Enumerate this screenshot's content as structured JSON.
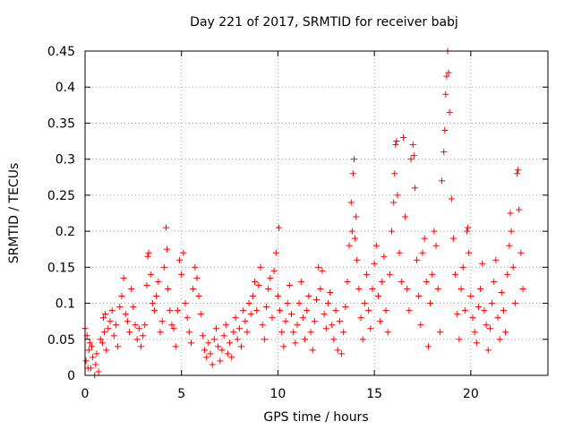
{
  "chart_data": {
    "type": "scatter",
    "title": "Day 221 of 2017, SRMTID for receiver babj",
    "xlabel": "GPS time / hours",
    "ylabel": "SRMTID / TECUs",
    "xlim": [
      0,
      24
    ],
    "ylim": [
      0,
      0.45
    ],
    "xticks": [
      0,
      5,
      10,
      15,
      20
    ],
    "xtick_labels": [
      "0",
      "5",
      "10",
      "15",
      "20"
    ],
    "yticks": [
      0,
      0.05,
      0.1,
      0.15,
      0.2,
      0.25,
      0.3,
      0.35,
      0.4,
      0.45
    ],
    "ytick_labels": [
      "0",
      "0.05",
      "0.1",
      "0.15",
      "0.2",
      "0.25",
      "0.3",
      "0.35",
      "0.4",
      "0.45"
    ],
    "grid": true,
    "marker": "plus",
    "color": "#ff0000",
    "series": [
      {
        "name": "SRMTID",
        "points": [
          [
            0.0,
            0.065
          ],
          [
            0.05,
            0.02
          ],
          [
            0.1,
            0.055
          ],
          [
            0.15,
            0.01
          ],
          [
            0.2,
            0.035
          ],
          [
            0.25,
            0.045
          ],
          [
            0.3,
            0.01
          ],
          [
            0.35,
            0.04
          ],
          [
            0.4,
            0.025
          ],
          [
            0.5,
            0.0
          ],
          [
            0.55,
            0.015
          ],
          [
            0.6,
            0.03
          ],
          [
            0.7,
            0.005
          ],
          [
            0.8,
            0.05
          ],
          [
            0.9,
            0.045
          ],
          [
            0.95,
            0.08
          ],
          [
            1.0,
            0.06
          ],
          [
            1.05,
            0.085
          ],
          [
            1.1,
            0.035
          ],
          [
            1.2,
            0.065
          ],
          [
            1.3,
            0.075
          ],
          [
            1.4,
            0.09
          ],
          [
            1.5,
            0.055
          ],
          [
            1.6,
            0.07
          ],
          [
            1.7,
            0.04
          ],
          [
            1.8,
            0.095
          ],
          [
            1.9,
            0.11
          ],
          [
            2.0,
            0.135
          ],
          [
            2.1,
            0.085
          ],
          [
            2.2,
            0.075
          ],
          [
            2.3,
            0.06
          ],
          [
            2.4,
            0.12
          ],
          [
            2.5,
            0.095
          ],
          [
            2.6,
            0.07
          ],
          [
            2.7,
            0.05
          ],
          [
            2.8,
            0.065
          ],
          [
            2.9,
            0.04
          ],
          [
            3.0,
            0.055
          ],
          [
            3.1,
            0.07
          ],
          [
            3.2,
            0.125
          ],
          [
            3.25,
            0.165
          ],
          [
            3.3,
            0.17
          ],
          [
            3.4,
            0.14
          ],
          [
            3.5,
            0.1
          ],
          [
            3.6,
            0.09
          ],
          [
            3.7,
            0.11
          ],
          [
            3.8,
            0.13
          ],
          [
            3.9,
            0.06
          ],
          [
            4.0,
            0.075
          ],
          [
            4.1,
            0.15
          ],
          [
            4.2,
            0.205
          ],
          [
            4.25,
            0.175
          ],
          [
            4.3,
            0.12
          ],
          [
            4.4,
            0.09
          ],
          [
            4.5,
            0.07
          ],
          [
            4.6,
            0.065
          ],
          [
            4.7,
            0.04
          ],
          [
            4.8,
            0.09
          ],
          [
            4.9,
            0.16
          ],
          [
            5.0,
            0.14
          ],
          [
            5.1,
            0.17
          ],
          [
            5.2,
            0.1
          ],
          [
            5.3,
            0.08
          ],
          [
            5.4,
            0.06
          ],
          [
            5.5,
            0.045
          ],
          [
            5.6,
            0.12
          ],
          [
            5.7,
            0.15
          ],
          [
            5.8,
            0.135
          ],
          [
            5.9,
            0.11
          ],
          [
            6.0,
            0.085
          ],
          [
            6.1,
            0.055
          ],
          [
            6.2,
            0.035
          ],
          [
            6.3,
            0.025
          ],
          [
            6.4,
            0.045
          ],
          [
            6.5,
            0.03
          ],
          [
            6.6,
            0.015
          ],
          [
            6.7,
            0.05
          ],
          [
            6.8,
            0.065
          ],
          [
            6.9,
            0.04
          ],
          [
            7.0,
            0.02
          ],
          [
            7.1,
            0.035
          ],
          [
            7.2,
            0.055
          ],
          [
            7.3,
            0.07
          ],
          [
            7.4,
            0.03
          ],
          [
            7.5,
            0.045
          ],
          [
            7.6,
            0.025
          ],
          [
            7.7,
            0.06
          ],
          [
            7.8,
            0.08
          ],
          [
            7.9,
            0.05
          ],
          [
            8.0,
            0.065
          ],
          [
            8.1,
            0.04
          ],
          [
            8.2,
            0.09
          ],
          [
            8.3,
            0.075
          ],
          [
            8.4,
            0.06
          ],
          [
            8.5,
            0.1
          ],
          [
            8.6,
            0.085
          ],
          [
            8.7,
            0.11
          ],
          [
            8.8,
            0.13
          ],
          [
            8.9,
            0.09
          ],
          [
            9.0,
            0.125
          ],
          [
            9.1,
            0.15
          ],
          [
            9.2,
            0.07
          ],
          [
            9.3,
            0.05
          ],
          [
            9.4,
            0.095
          ],
          [
            9.5,
            0.12
          ],
          [
            9.6,
            0.135
          ],
          [
            9.7,
            0.08
          ],
          [
            9.8,
            0.145
          ],
          [
            9.9,
            0.17
          ],
          [
            10.0,
            0.11
          ],
          [
            10.05,
            0.205
          ],
          [
            10.1,
            0.09
          ],
          [
            10.2,
            0.06
          ],
          [
            10.3,
            0.04
          ],
          [
            10.4,
            0.075
          ],
          [
            10.5,
            0.1
          ],
          [
            10.6,
            0.125
          ],
          [
            10.7,
            0.085
          ],
          [
            10.8,
            0.06
          ],
          [
            10.9,
            0.045
          ],
          [
            11.0,
            0.07
          ],
          [
            11.1,
            0.1
          ],
          [
            11.2,
            0.13
          ],
          [
            11.3,
            0.08
          ],
          [
            11.4,
            0.05
          ],
          [
            11.5,
            0.09
          ],
          [
            11.6,
            0.11
          ],
          [
            11.7,
            0.06
          ],
          [
            11.8,
            0.035
          ],
          [
            11.9,
            0.075
          ],
          [
            12.0,
            0.105
          ],
          [
            12.1,
            0.15
          ],
          [
            12.2,
            0.12
          ],
          [
            12.3,
            0.145
          ],
          [
            12.4,
            0.085
          ],
          [
            12.5,
            0.065
          ],
          [
            12.6,
            0.1
          ],
          [
            12.7,
            0.115
          ],
          [
            12.8,
            0.07
          ],
          [
            12.9,
            0.05
          ],
          [
            13.0,
            0.09
          ],
          [
            13.1,
            0.035
          ],
          [
            13.2,
            0.075
          ],
          [
            13.3,
            0.03
          ],
          [
            13.4,
            0.06
          ],
          [
            13.5,
            0.095
          ],
          [
            13.6,
            0.13
          ],
          [
            13.7,
            0.18
          ],
          [
            13.8,
            0.24
          ],
          [
            13.85,
            0.2
          ],
          [
            13.9,
            0.28
          ],
          [
            13.95,
            0.3
          ],
          [
            14.0,
            0.19
          ],
          [
            14.05,
            0.22
          ],
          [
            14.1,
            0.16
          ],
          [
            14.2,
            0.12
          ],
          [
            14.3,
            0.08
          ],
          [
            14.4,
            0.05
          ],
          [
            14.5,
            0.1
          ],
          [
            14.6,
            0.14
          ],
          [
            14.7,
            0.09
          ],
          [
            14.8,
            0.065
          ],
          [
            14.9,
            0.12
          ],
          [
            15.0,
            0.155
          ],
          [
            15.1,
            0.18
          ],
          [
            15.2,
            0.11
          ],
          [
            15.3,
            0.075
          ],
          [
            15.4,
            0.13
          ],
          [
            15.5,
            0.165
          ],
          [
            15.6,
            0.09
          ],
          [
            15.7,
            0.06
          ],
          [
            15.8,
            0.14
          ],
          [
            15.9,
            0.2
          ],
          [
            16.0,
            0.24
          ],
          [
            16.05,
            0.28
          ],
          [
            16.1,
            0.32
          ],
          [
            16.15,
            0.325
          ],
          [
            16.2,
            0.25
          ],
          [
            16.3,
            0.17
          ],
          [
            16.4,
            0.13
          ],
          [
            16.5,
            0.33
          ],
          [
            16.6,
            0.22
          ],
          [
            16.7,
            0.12
          ],
          [
            16.8,
            0.09
          ],
          [
            16.9,
            0.3
          ],
          [
            17.0,
            0.32
          ],
          [
            17.05,
            0.305
          ],
          [
            17.1,
            0.26
          ],
          [
            17.2,
            0.16
          ],
          [
            17.3,
            0.11
          ],
          [
            17.4,
            0.07
          ],
          [
            17.5,
            0.17
          ],
          [
            17.6,
            0.19
          ],
          [
            17.7,
            0.13
          ],
          [
            17.8,
            0.04
          ],
          [
            17.9,
            0.1
          ],
          [
            18.0,
            0.14
          ],
          [
            18.1,
            0.2
          ],
          [
            18.2,
            0.18
          ],
          [
            18.3,
            0.12
          ],
          [
            18.4,
            0.06
          ],
          [
            18.5,
            0.27
          ],
          [
            18.6,
            0.31
          ],
          [
            18.65,
            0.34
          ],
          [
            18.7,
            0.39
          ],
          [
            18.75,
            0.415
          ],
          [
            18.8,
            0.45
          ],
          [
            18.85,
            0.42
          ],
          [
            18.9,
            0.365
          ],
          [
            19.0,
            0.245
          ],
          [
            19.1,
            0.19
          ],
          [
            19.2,
            0.14
          ],
          [
            19.3,
            0.085
          ],
          [
            19.4,
            0.05
          ],
          [
            19.5,
            0.12
          ],
          [
            19.6,
            0.15
          ],
          [
            19.7,
            0.09
          ],
          [
            19.8,
            0.2
          ],
          [
            19.85,
            0.205
          ],
          [
            19.9,
            0.17
          ],
          [
            20.0,
            0.11
          ],
          [
            20.1,
            0.08
          ],
          [
            20.2,
            0.06
          ],
          [
            20.3,
            0.045
          ],
          [
            20.4,
            0.095
          ],
          [
            20.5,
            0.12
          ],
          [
            20.6,
            0.155
          ],
          [
            20.7,
            0.09
          ],
          [
            20.8,
            0.07
          ],
          [
            20.9,
            0.035
          ],
          [
            21.0,
            0.065
          ],
          [
            21.1,
            0.1
          ],
          [
            21.2,
            0.13
          ],
          [
            21.3,
            0.16
          ],
          [
            21.4,
            0.08
          ],
          [
            21.5,
            0.05
          ],
          [
            21.6,
            0.115
          ],
          [
            21.7,
            0.09
          ],
          [
            21.8,
            0.06
          ],
          [
            21.9,
            0.14
          ],
          [
            22.0,
            0.18
          ],
          [
            22.05,
            0.225
          ],
          [
            22.1,
            0.2
          ],
          [
            22.2,
            0.15
          ],
          [
            22.3,
            0.1
          ],
          [
            22.4,
            0.28
          ],
          [
            22.45,
            0.285
          ],
          [
            22.5,
            0.23
          ],
          [
            22.6,
            0.17
          ],
          [
            22.7,
            0.12
          ]
        ]
      }
    ]
  }
}
